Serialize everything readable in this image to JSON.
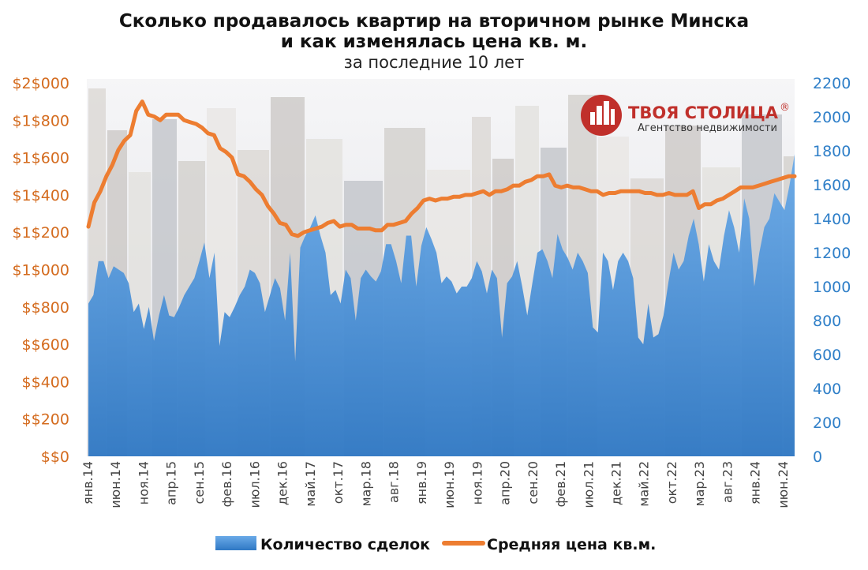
{
  "title": {
    "line1": "Сколько продавалось квартир на вторичном рынке Минска",
    "line2": "и как изменялась цена кв. м.",
    "subtitle": "за последние 10 лет"
  },
  "logo": {
    "name": "ТВОЯ СТОЛИЦА",
    "registered": "®",
    "tagline": "Агентство недвижимости"
  },
  "colors": {
    "area": "#4a90d9",
    "line": "#ed7d31",
    "left_axis": "#d46b1e",
    "right_axis": "#2f7fc8"
  },
  "chart_data": {
    "type": "area",
    "left_axis": {
      "ylim": [
        0,
        2000
      ],
      "ticks": [
        "$$0",
        "$$200",
        "$$400",
        "$$600",
        "$$800",
        "$1$000",
        "$1$200",
        "$1$400",
        "$1$600",
        "$1$800",
        "$2$000"
      ]
    },
    "right_axis": {
      "ylim": [
        0,
        2200
      ],
      "ticks": [
        "0",
        "200",
        "400",
        "600",
        "800",
        "1000",
        "1200",
        "1400",
        "1600",
        "1800",
        "2000",
        "2200"
      ]
    },
    "x_tick_labels": [
      "янв.14",
      "июн.14",
      "ноя.14",
      "апр.15",
      "сен.15",
      "фев.16",
      "июл.16",
      "дек.16",
      "май.17",
      "окт.17",
      "мар.18",
      "авг.18",
      "янв.19",
      "июн.19",
      "ноя.19",
      "апр.20",
      "сен.20",
      "фев.21",
      "июл.21",
      "дек.21",
      "май.22",
      "окт.22",
      "мар.23",
      "авг.23",
      "янв.24",
      "июн.24"
    ],
    "x_range": [
      "янв.14",
      "авг.24"
    ],
    "series": [
      {
        "name": "Количество сделок",
        "type": "area",
        "axis": "right",
        "values": [
          900,
          950,
          1150,
          1150,
          1050,
          1120,
          1100,
          1080,
          1020,
          850,
          900,
          750,
          880,
          680,
          830,
          950,
          830,
          820,
          880,
          950,
          1000,
          1050,
          1150,
          1260,
          1050,
          1200,
          650,
          850,
          820,
          880,
          950,
          1000,
          1100,
          1080,
          1020,
          850,
          950,
          1050,
          990,
          800,
          1200,
          560,
          1230,
          1300,
          1350,
          1420,
          1300,
          1200,
          950,
          980,
          900,
          1100,
          1050,
          800,
          1050,
          1100,
          1060,
          1030,
          1090,
          1250,
          1250,
          1150,
          1020,
          1300,
          1300,
          1000,
          1240,
          1350,
          1280,
          1200,
          1020,
          1060,
          1030,
          960,
          1000,
          1000,
          1050,
          1150,
          1090,
          960,
          1100,
          1050,
          700,
          1020,
          1060,
          1150,
          1000,
          830,
          1020,
          1200,
          1220,
          1150,
          1050,
          1310,
          1220,
          1170,
          1100,
          1200,
          1150,
          1080,
          760,
          730,
          1200,
          1150,
          980,
          1150,
          1200,
          1150,
          1050,
          700,
          660,
          900,
          700,
          720,
          830,
          1030,
          1200,
          1100,
          1150,
          1300,
          1400,
          1250,
          1030,
          1250,
          1150,
          1100,
          1300,
          1450,
          1350,
          1200,
          1520,
          1400,
          1000,
          1200,
          1350,
          1400,
          1550,
          1500,
          1450,
          1600,
          1780
        ]
      },
      {
        "name": "Средняя цена кв.м.",
        "type": "line",
        "axis": "left",
        "values": [
          1230,
          1360,
          1420,
          1500,
          1560,
          1640,
          1690,
          1720,
          1850,
          1900,
          1830,
          1820,
          1800,
          1830,
          1830,
          1830,
          1800,
          1790,
          1780,
          1760,
          1730,
          1720,
          1650,
          1630,
          1600,
          1510,
          1500,
          1470,
          1430,
          1400,
          1340,
          1300,
          1250,
          1240,
          1190,
          1180,
          1200,
          1210,
          1220,
          1230,
          1250,
          1260,
          1230,
          1240,
          1240,
          1220,
          1220,
          1220,
          1210,
          1210,
          1240,
          1240,
          1250,
          1260,
          1300,
          1330,
          1370,
          1380,
          1370,
          1380,
          1380,
          1390,
          1390,
          1400,
          1400,
          1410,
          1420,
          1400,
          1420,
          1420,
          1430,
          1450,
          1450,
          1470,
          1480,
          1500,
          1500,
          1510,
          1450,
          1440,
          1450,
          1440,
          1440,
          1430,
          1420,
          1420,
          1400,
          1410,
          1410,
          1420,
          1420,
          1420,
          1420,
          1410,
          1410,
          1400,
          1400,
          1410,
          1400,
          1400,
          1400,
          1420,
          1330,
          1350,
          1350,
          1370,
          1380,
          1400,
          1420,
          1440,
          1440,
          1440,
          1450,
          1460,
          1470,
          1480,
          1490,
          1500,
          1500
        ]
      }
    ],
    "legend": {
      "position": "bottom",
      "items": [
        "Количество сделок",
        "Средняя цена кв.м."
      ]
    },
    "grid": false
  }
}
